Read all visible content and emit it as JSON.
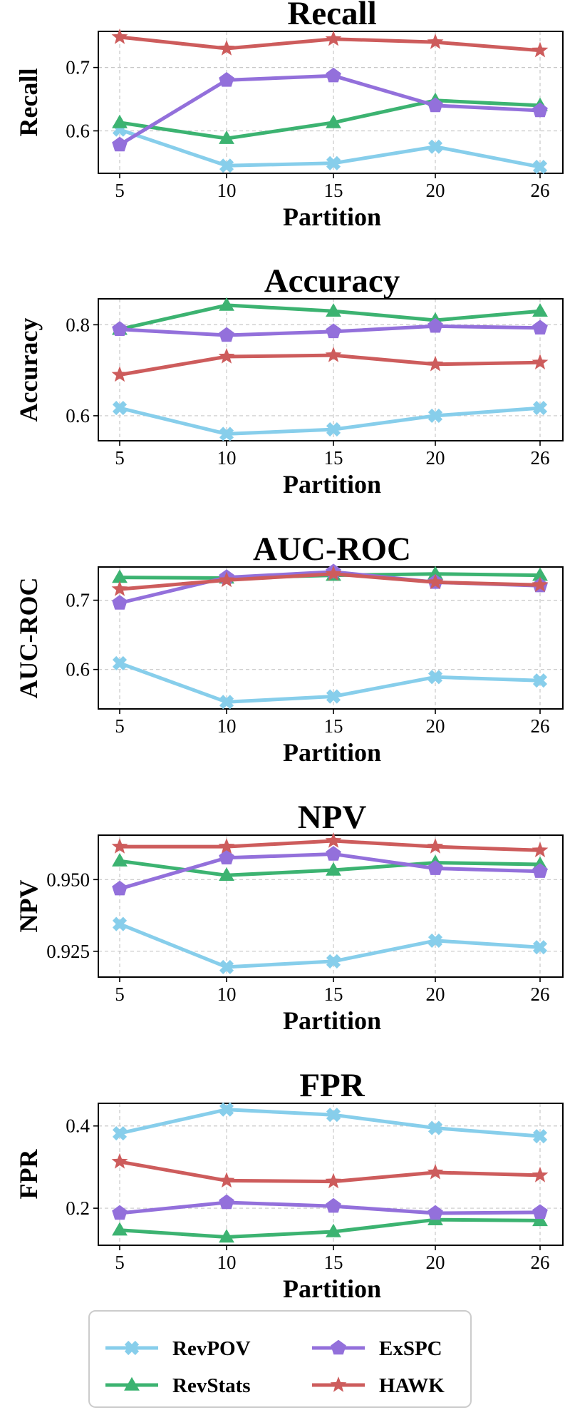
{
  "legend": {
    "placement": "bottom-center",
    "entries": [
      {
        "name": "RevPOV",
        "color": "#87CEEB",
        "marker": "x"
      },
      {
        "name": "ExSPC",
        "color": "#9370DB",
        "marker": "pentagon"
      },
      {
        "name": "RevStats",
        "color": "#3CB371",
        "marker": "triangle"
      },
      {
        "name": "HAWK",
        "color": "#CD5C5C",
        "marker": "star"
      }
    ]
  },
  "chart_data": [
    {
      "type": "line",
      "title": "Recall",
      "xlabel": "Partition",
      "ylabel": "Recall",
      "categories": [
        "5",
        "10",
        "15",
        "20",
        "26"
      ],
      "ylim": [
        0.533,
        0.757
      ],
      "yticks": [
        0.6,
        0.7
      ],
      "ytick_labels": [
        "0.6",
        "0.7"
      ],
      "grid": true,
      "series": [
        {
          "name": "RevPOV",
          "values": [
            0.602,
            0.545,
            0.549,
            0.575,
            0.543
          ]
        },
        {
          "name": "RevStats",
          "values": [
            0.613,
            0.588,
            0.613,
            0.648,
            0.64
          ]
        },
        {
          "name": "ExSPC",
          "values": [
            0.578,
            0.68,
            0.687,
            0.64,
            0.632
          ]
        },
        {
          "name": "HAWK",
          "values": [
            0.748,
            0.73,
            0.745,
            0.74,
            0.727
          ]
        }
      ]
    },
    {
      "type": "line",
      "title": "Accuracy",
      "xlabel": "Partition",
      "ylabel": "Accuracy",
      "categories": [
        "5",
        "10",
        "15",
        "20",
        "26"
      ],
      "ylim": [
        0.545,
        0.857
      ],
      "yticks": [
        0.6,
        0.8
      ],
      "ytick_labels": [
        "0.6",
        "0.8"
      ],
      "grid": true,
      "series": [
        {
          "name": "RevPOV",
          "values": [
            0.617,
            0.56,
            0.57,
            0.6,
            0.617
          ]
        },
        {
          "name": "RevStats",
          "values": [
            0.79,
            0.843,
            0.83,
            0.81,
            0.83
          ]
        },
        {
          "name": "ExSPC",
          "values": [
            0.79,
            0.777,
            0.785,
            0.797,
            0.793
          ]
        },
        {
          "name": "HAWK",
          "values": [
            0.69,
            0.73,
            0.733,
            0.713,
            0.717
          ]
        }
      ]
    },
    {
      "type": "line",
      "title": "AUC-ROC",
      "xlabel": "Partition",
      "ylabel": "AUC-ROC",
      "categories": [
        "5",
        "10",
        "15",
        "20",
        "26"
      ],
      "ylim": [
        0.543,
        0.748
      ],
      "yticks": [
        0.6,
        0.7
      ],
      "ytick_labels": [
        "0.6",
        "0.7"
      ],
      "grid": true,
      "series": [
        {
          "name": "RevPOV",
          "values": [
            0.609,
            0.553,
            0.561,
            0.589,
            0.584
          ]
        },
        {
          "name": "RevStats",
          "values": [
            0.733,
            0.732,
            0.736,
            0.738,
            0.736
          ]
        },
        {
          "name": "ExSPC",
          "values": [
            0.696,
            0.733,
            0.741,
            0.726,
            0.721
          ]
        },
        {
          "name": "HAWK",
          "values": [
            0.716,
            0.729,
            0.738,
            0.726,
            0.722
          ]
        }
      ]
    },
    {
      "type": "line",
      "title": "NPV",
      "xlabel": "Partition",
      "ylabel": "NPV",
      "categories": [
        "5",
        "10",
        "15",
        "20",
        "26"
      ],
      "ylim": [
        0.916,
        0.9655
      ],
      "yticks": [
        0.925,
        0.95
      ],
      "ytick_labels": [
        "0.925",
        "0.950"
      ],
      "grid": true,
      "series": [
        {
          "name": "RevPOV",
          "values": [
            0.9345,
            0.9195,
            0.9215,
            0.9287,
            0.9264
          ]
        },
        {
          "name": "RevStats",
          "values": [
            0.9565,
            0.9515,
            0.9533,
            0.9559,
            0.9553
          ]
        },
        {
          "name": "ExSPC",
          "values": [
            0.9468,
            0.9576,
            0.9589,
            0.9539,
            0.9529
          ]
        },
        {
          "name": "HAWK",
          "values": [
            0.9615,
            0.9615,
            0.9635,
            0.9615,
            0.9602
          ]
        }
      ]
    },
    {
      "type": "line",
      "title": "FPR",
      "xlabel": "Partition",
      "ylabel": "FPR",
      "categories": [
        "5",
        "10",
        "15",
        "20",
        "26"
      ],
      "ylim": [
        0.11,
        0.455
      ],
      "yticks": [
        0.2,
        0.4
      ],
      "ytick_labels": [
        "0.2",
        "0.4"
      ],
      "grid": true,
      "series": [
        {
          "name": "RevPOV",
          "values": [
            0.382,
            0.44,
            0.427,
            0.395,
            0.375
          ]
        },
        {
          "name": "RevStats",
          "values": [
            0.147,
            0.13,
            0.143,
            0.172,
            0.17
          ]
        },
        {
          "name": "ExSPC",
          "values": [
            0.188,
            0.214,
            0.205,
            0.188,
            0.19
          ]
        },
        {
          "name": "HAWK",
          "values": [
            0.313,
            0.267,
            0.265,
            0.287,
            0.28
          ]
        }
      ]
    }
  ]
}
